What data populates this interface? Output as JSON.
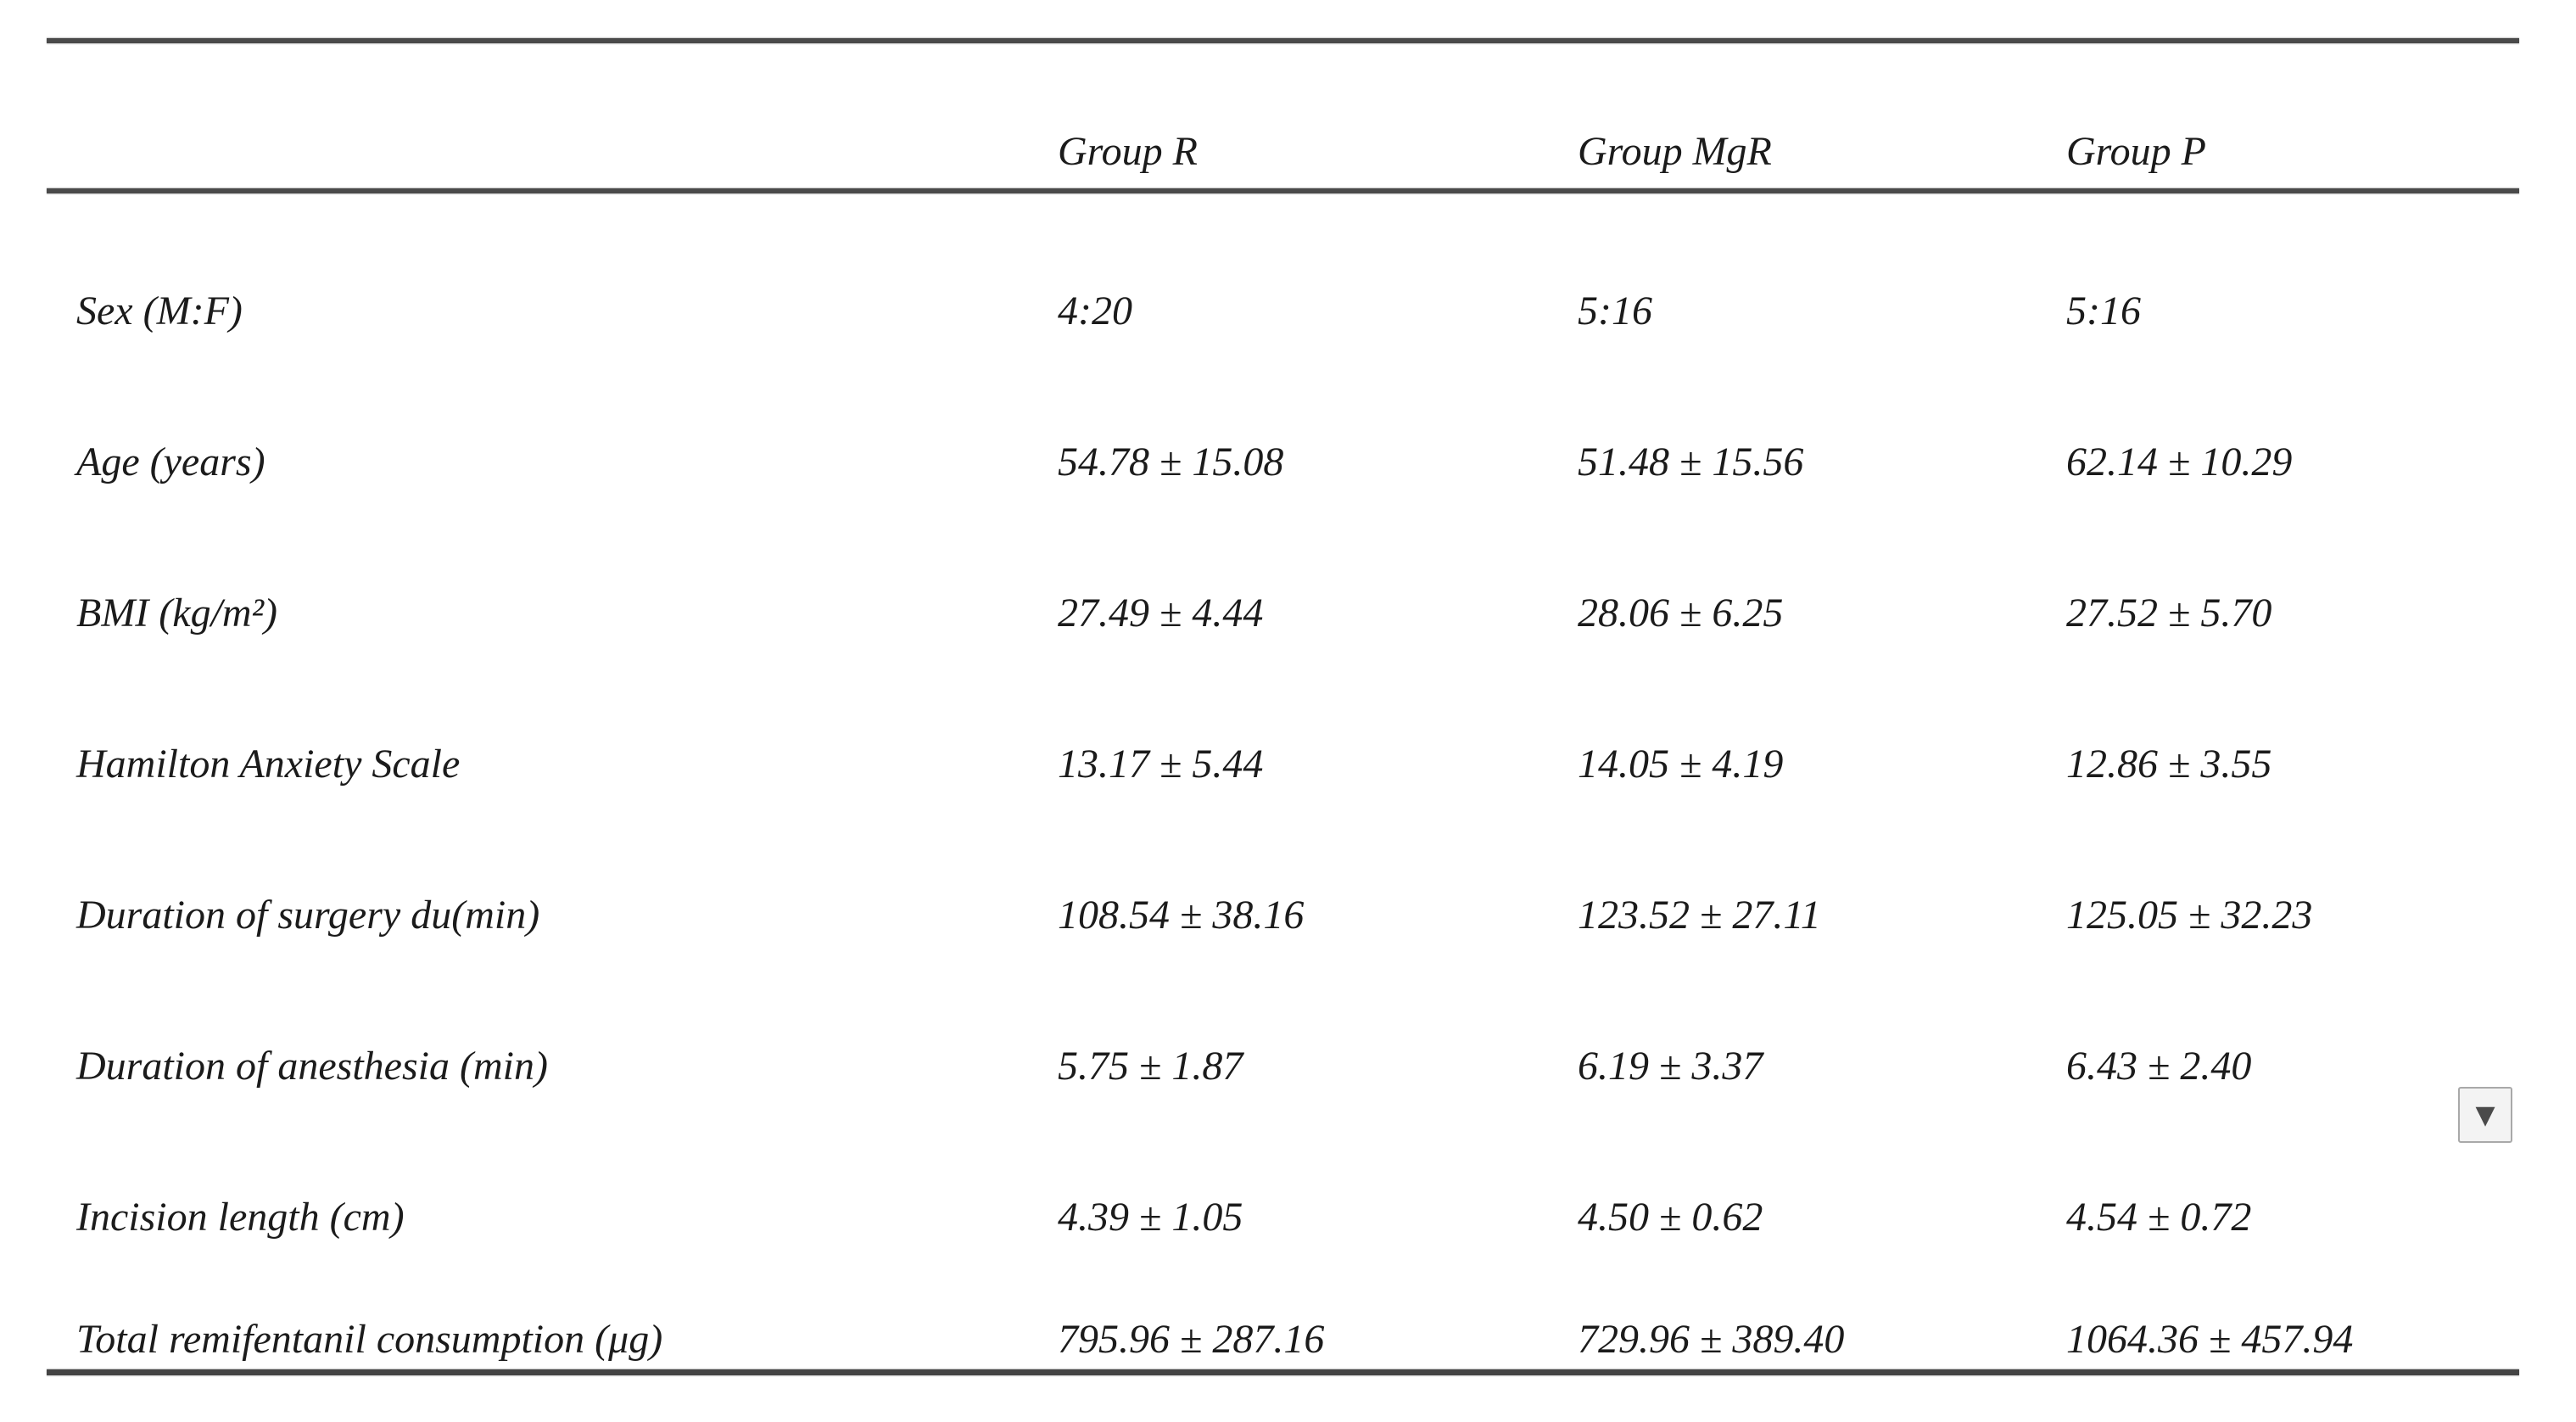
{
  "table": {
    "columns": [
      "Group R",
      "Group MgR",
      "Group P"
    ],
    "rows": [
      {
        "label": "Sex (M:F)",
        "values": [
          "4:20",
          "5:16",
          "5:16"
        ]
      },
      {
        "label": "Age (years)",
        "values": [
          "54.78 ± 15.08",
          "51.48 ± 15.56",
          "62.14 ± 10.29"
        ]
      },
      {
        "label": "BMI (kg/m²)",
        "values": [
          "27.49 ± 4.44",
          "28.06 ± 6.25",
          "27.52 ± 5.70"
        ]
      },
      {
        "label": "Hamilton Anxiety Scale",
        "values": [
          "13.17 ± 5.44",
          "14.05 ± 4.19",
          "12.86 ± 3.55"
        ]
      },
      {
        "label": "Duration of surgery du(min)",
        "values": [
          "108.54 ± 38.16",
          "123.52 ± 27.11",
          "125.05 ± 32.23"
        ]
      },
      {
        "label": "Duration of anesthesia (min)",
        "values": [
          "5.75 ± 1.87",
          "6.19 ± 3.37",
          "6.43 ± 2.40"
        ]
      },
      {
        "label": "Incision length (cm)",
        "values": [
          "4.39 ± 1.05",
          "4.50 ± 0.62",
          "4.54 ± 0.72"
        ]
      },
      {
        "label": "Total remifentanil consumption (μg)",
        "values": [
          "795.96 ± 287.16",
          "729.96 ± 389.40",
          "1064.36 ± 457.94"
        ]
      }
    ]
  },
  "widget": {
    "dropdown_icon": "▼"
  },
  "colors": {
    "rule": "#4a4a4a",
    "text": "#1b1b1b",
    "button_bg": "#f3f3f3",
    "button_border": "#a9a9a9",
    "button_glyph": "#4a4a4a"
  }
}
